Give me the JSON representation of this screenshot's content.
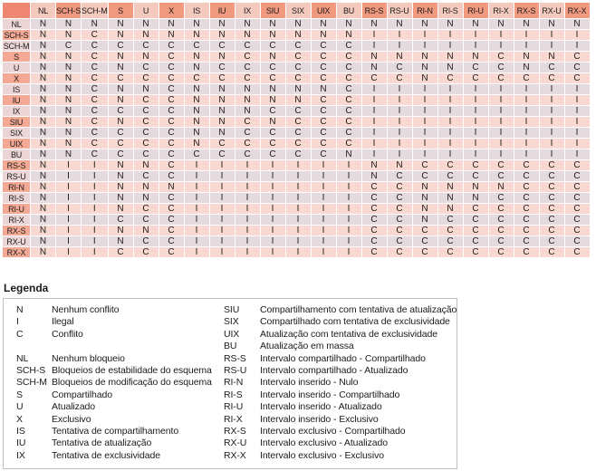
{
  "matrix": {
    "corner": "",
    "columns": [
      "NL",
      "SCH-S",
      "SCH-M",
      "S",
      "U",
      "X",
      "IS",
      "IU",
      "IX",
      "SIU",
      "SIX",
      "UIX",
      "BU",
      "RS-S",
      "RS-U",
      "RI-N",
      "RI-S",
      "RI-U",
      "RI-X",
      "RX-S",
      "RX-U",
      "RX-X"
    ],
    "rows": [
      {
        "label": "NL",
        "cells": "NNNNNNNNNNNNNNNNNNNNNN"
      },
      {
        "label": "SCH-S",
        "cells": "NNCNNNNNNNNNNIIIIIIIII"
      },
      {
        "label": "SCH-M",
        "cells": "NCCCCCCCCCCCCIIIIIIIII"
      },
      {
        "label": "S",
        "cells": "NNCNNCNNCNCCCNNNNNCNNC"
      },
      {
        "label": "U",
        "cells": "NNCNCCNCCCCCCNCNNCCNCC"
      },
      {
        "label": "X",
        "cells": "NNCCCCCCCCCCCCCNCCCCCC"
      },
      {
        "label": "IS",
        "cells": "NNCNNCNNNNNNCIIIIIIIII"
      },
      {
        "label": "IU",
        "cells": "NNCNCCNNNNNCCIIIIIIIII"
      },
      {
        "label": "IX",
        "cells": "NNCCCCNNNCCCCIIIIIIIII"
      },
      {
        "label": "SIU",
        "cells": "NNCNCCNNCNCCCIIIIIIIII"
      },
      {
        "label": "SIX",
        "cells": "NNCCCCNNCCCCCIIIIIIIII"
      },
      {
        "label": "UIX",
        "cells": "NNCCCCNCCCCCCIIIIIIIII"
      },
      {
        "label": "BU",
        "cells": "NNCCCCCCCCCCNIIIIIIIII"
      },
      {
        "label": "RS-S",
        "cells": "NIINNCIIIIIIINNCCCCCCC"
      },
      {
        "label": "RS-U",
        "cells": "NIINCCIIIIIIINCCCCCCCC"
      },
      {
        "label": "RI-N",
        "cells": "NIINNNIIIIIIICCNNNNCCC"
      },
      {
        "label": "RI-S",
        "cells": "NIINNCIIIIIIICCNNNCCCC"
      },
      {
        "label": "RI-U",
        "cells": "NIINCCIIIIIIICCNNCCCCC"
      },
      {
        "label": "RI-X",
        "cells": "NIICCCIIIIIIICCNCCCCCC"
      },
      {
        "label": "RX-S",
        "cells": "NIINNCIIIIIIICCCCCCCCC"
      },
      {
        "label": "RX-U",
        "cells": "NIINCCIIIIIIICCCCCCCCC"
      },
      {
        "label": "RX-X",
        "cells": "NIICCCIIIIIIICCCCCCCCC"
      }
    ]
  },
  "legend": {
    "title": "Legenda",
    "left": [
      {
        "code": "N",
        "desc": "Nenhum conflito"
      },
      {
        "code": "I",
        "desc": "Ilegal"
      },
      {
        "code": "C",
        "desc": "Conflito"
      },
      {
        "code": "",
        "desc": ""
      },
      {
        "code": "NL",
        "desc": "Nenhum bloqueio"
      },
      {
        "code": "SCH-S",
        "desc": "Bloqueios de estabilidade do esquema"
      },
      {
        "code": "SCH-M",
        "desc": "Bloqueios de modificação do esquema"
      },
      {
        "code": "S",
        "desc": "Compartilhado"
      },
      {
        "code": "U",
        "desc": "Atualizado"
      },
      {
        "code": "X",
        "desc": "Exclusivo"
      },
      {
        "code": "IS",
        "desc": "Tentativa de compartilhamento"
      },
      {
        "code": "IU",
        "desc": "Tentativa de atualização"
      },
      {
        "code": "IX",
        "desc": "Tentativa de exclusividade"
      }
    ],
    "right": [
      {
        "code": "SIU",
        "desc": "Compartilhamento com tentativa de atualização"
      },
      {
        "code": "SIX",
        "desc": "Compartilhado com tentativa de exclusividade"
      },
      {
        "code": "UIX",
        "desc": "Atualização com tentativa de exclusividade"
      },
      {
        "code": "BU",
        "desc": "Atualização em massa"
      },
      {
        "code": "RS-S",
        "desc": "Intervalo compartilhado - Compartilhado"
      },
      {
        "code": "RS-U",
        "desc": "Intervalo compartilhado - Atualizado"
      },
      {
        "code": "RI-N",
        "desc": "Intervalo inserido - Nulo"
      },
      {
        "code": "RI-S",
        "desc": "Intervalo inserido - Compartilhado"
      },
      {
        "code": "RI-U",
        "desc": "Intervalo inserido - Atualizado"
      },
      {
        "code": "RI-X",
        "desc": "Intervalo inserido - Exclusivo"
      },
      {
        "code": "RX-S",
        "desc": "Intervalo exclusivo - Compartilhado"
      },
      {
        "code": "RX-U",
        "desc": "Intervalo exclusivo - Atualizado"
      },
      {
        "code": "RX-X",
        "desc": "Intervalo exclusivo - Exclusivo"
      }
    ]
  },
  "colors": {
    "corner_bg": "#ee8873",
    "header_dark": "#f0997f",
    "header_light": "#f4cabf",
    "row_header_dark": "#f3a994",
    "row_header_light": "#ecd5d6",
    "row_pink": "#f8d8d1",
    "row_gray": "#e5dadd",
    "grid_line": "#ffffff",
    "text": "#1b1b1b",
    "legend_border": "#c0c0c0"
  }
}
